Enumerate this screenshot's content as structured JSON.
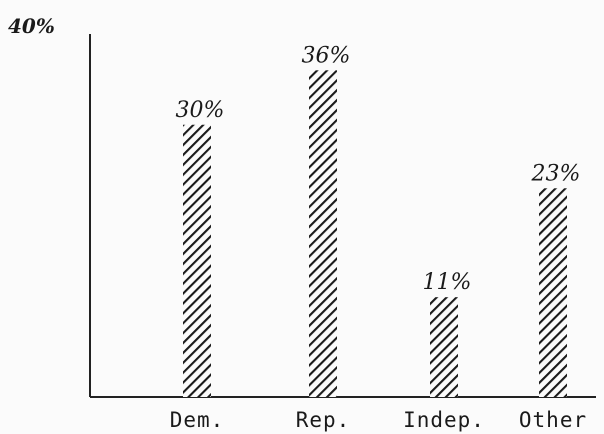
{
  "chart_data": {
    "type": "bar",
    "categories": [
      "Dem.",
      "Rep.",
      "Indep.",
      "Other"
    ],
    "values": [
      30,
      36,
      11,
      23
    ],
    "data_labels": [
      "30%",
      "36%",
      "11%",
      "23%"
    ],
    "y_tick_label": "40%",
    "ylim": [
      0,
      40
    ],
    "title": "",
    "xlabel": "",
    "ylabel": "",
    "grid": false,
    "bar_fill": "hatched",
    "colors": {
      "ink": "#1a1a1a",
      "background": "#fbfbfb"
    }
  }
}
